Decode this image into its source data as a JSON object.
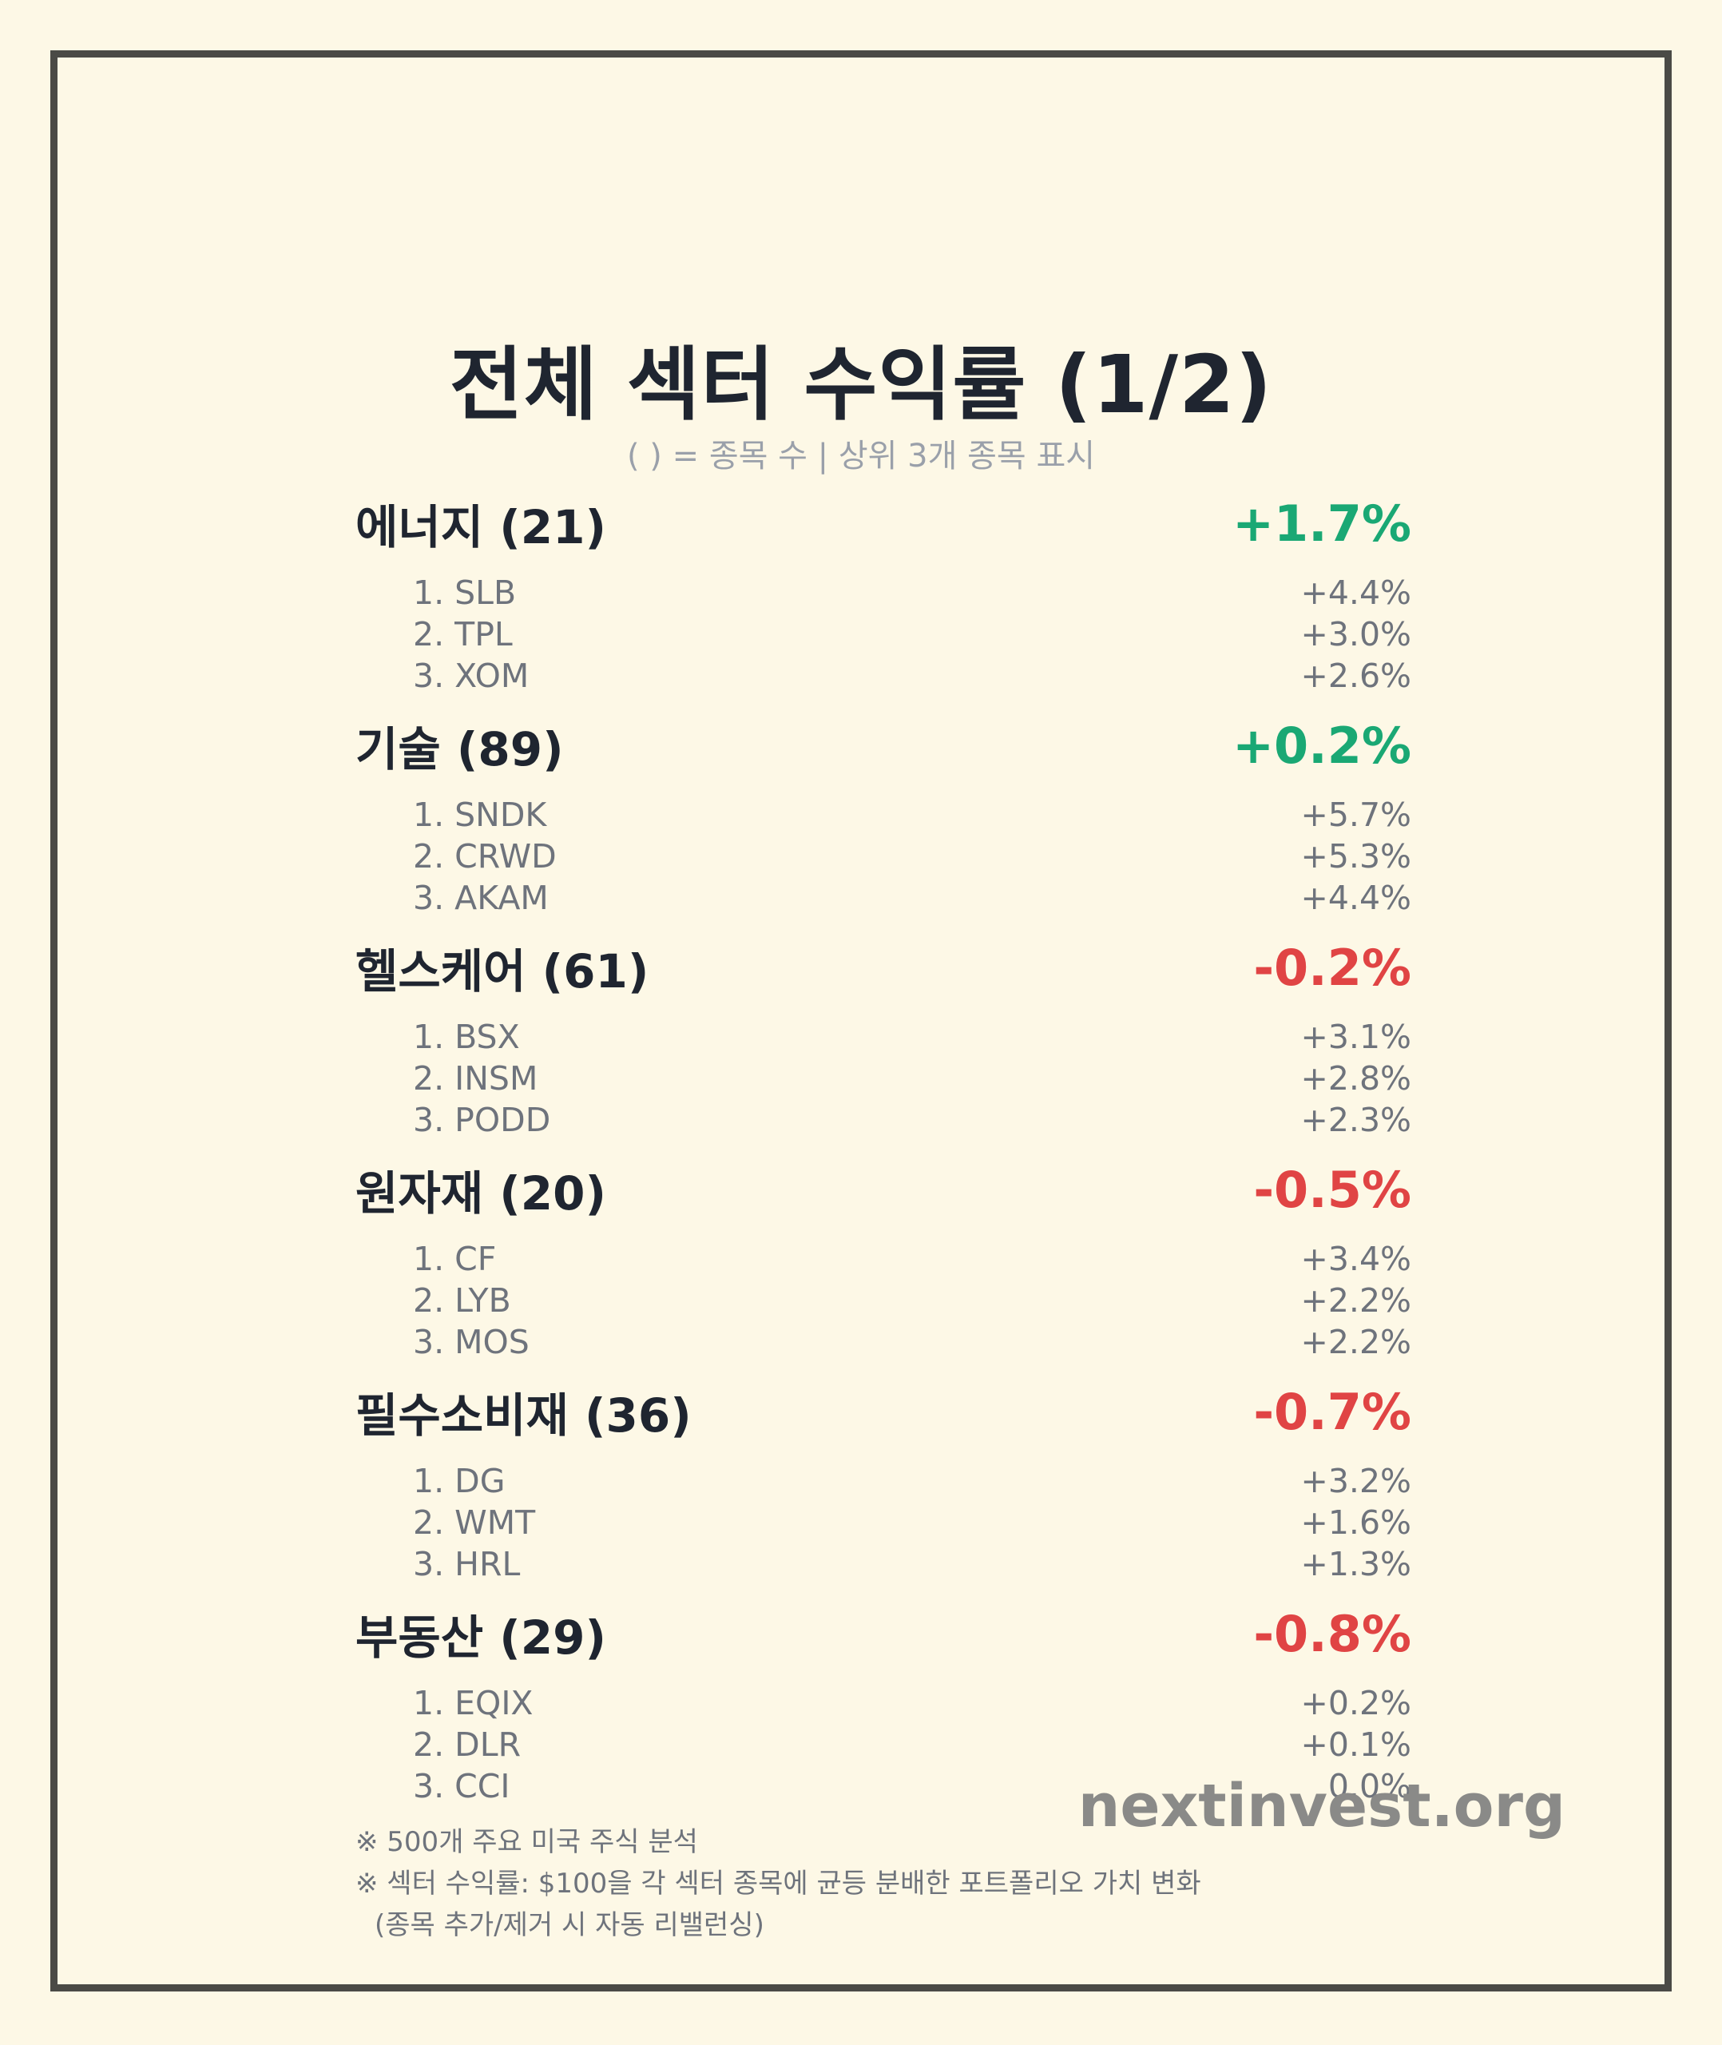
{
  "title": "전체 섹터 수익률 (1/2)",
  "subtitle": "( ) = 종목 수 | 상위 3개 종목 표시",
  "colors": {
    "positive": "#1aa874",
    "negative": "#e04444",
    "background": "#fdf8e6"
  },
  "sectors": [
    {
      "name": "에너지 (21)",
      "return": "+1.7%",
      "trend": "positive",
      "stocks": [
        {
          "label": "1. SLB",
          "value": "+4.4%"
        },
        {
          "label": "2. TPL",
          "value": "+3.0%"
        },
        {
          "label": "3. XOM",
          "value": "+2.6%"
        }
      ]
    },
    {
      "name": "기술 (89)",
      "return": "+0.2%",
      "trend": "positive",
      "stocks": [
        {
          "label": "1. SNDK",
          "value": "+5.7%"
        },
        {
          "label": "2. CRWD",
          "value": "+5.3%"
        },
        {
          "label": "3. AKAM",
          "value": "+4.4%"
        }
      ]
    },
    {
      "name": "헬스케어 (61)",
      "return": "-0.2%",
      "trend": "negative",
      "stocks": [
        {
          "label": "1. BSX",
          "value": "+3.1%"
        },
        {
          "label": "2. INSM",
          "value": "+2.8%"
        },
        {
          "label": "3. PODD",
          "value": "+2.3%"
        }
      ]
    },
    {
      "name": "원자재 (20)",
      "return": "-0.5%",
      "trend": "negative",
      "stocks": [
        {
          "label": "1. CF",
          "value": "+3.4%"
        },
        {
          "label": "2. LYB",
          "value": "+2.2%"
        },
        {
          "label": "3. MOS",
          "value": "+2.2%"
        }
      ]
    },
    {
      "name": "필수소비재 (36)",
      "return": "-0.7%",
      "trend": "negative",
      "stocks": [
        {
          "label": "1. DG",
          "value": "+3.2%"
        },
        {
          "label": "2. WMT",
          "value": "+1.6%"
        },
        {
          "label": "3. HRL",
          "value": "+1.3%"
        }
      ]
    },
    {
      "name": "부동산 (29)",
      "return": "-0.8%",
      "trend": "negative",
      "stocks": [
        {
          "label": "1. EQIX",
          "value": "+0.2%"
        },
        {
          "label": "2. DLR",
          "value": "+0.1%"
        },
        {
          "label": "3. CCI",
          "value": "0.0%"
        }
      ]
    }
  ],
  "brand": "nextinvest.org",
  "notes": [
    "※ 500개 주요 미국 주식 분석",
    "※ 섹터 수익률: $100을 각 섹터 종목에 균등 분배한 포트폴리오 가치 변화",
    "(종목 추가/제거 시 자동 리밸런싱)"
  ]
}
